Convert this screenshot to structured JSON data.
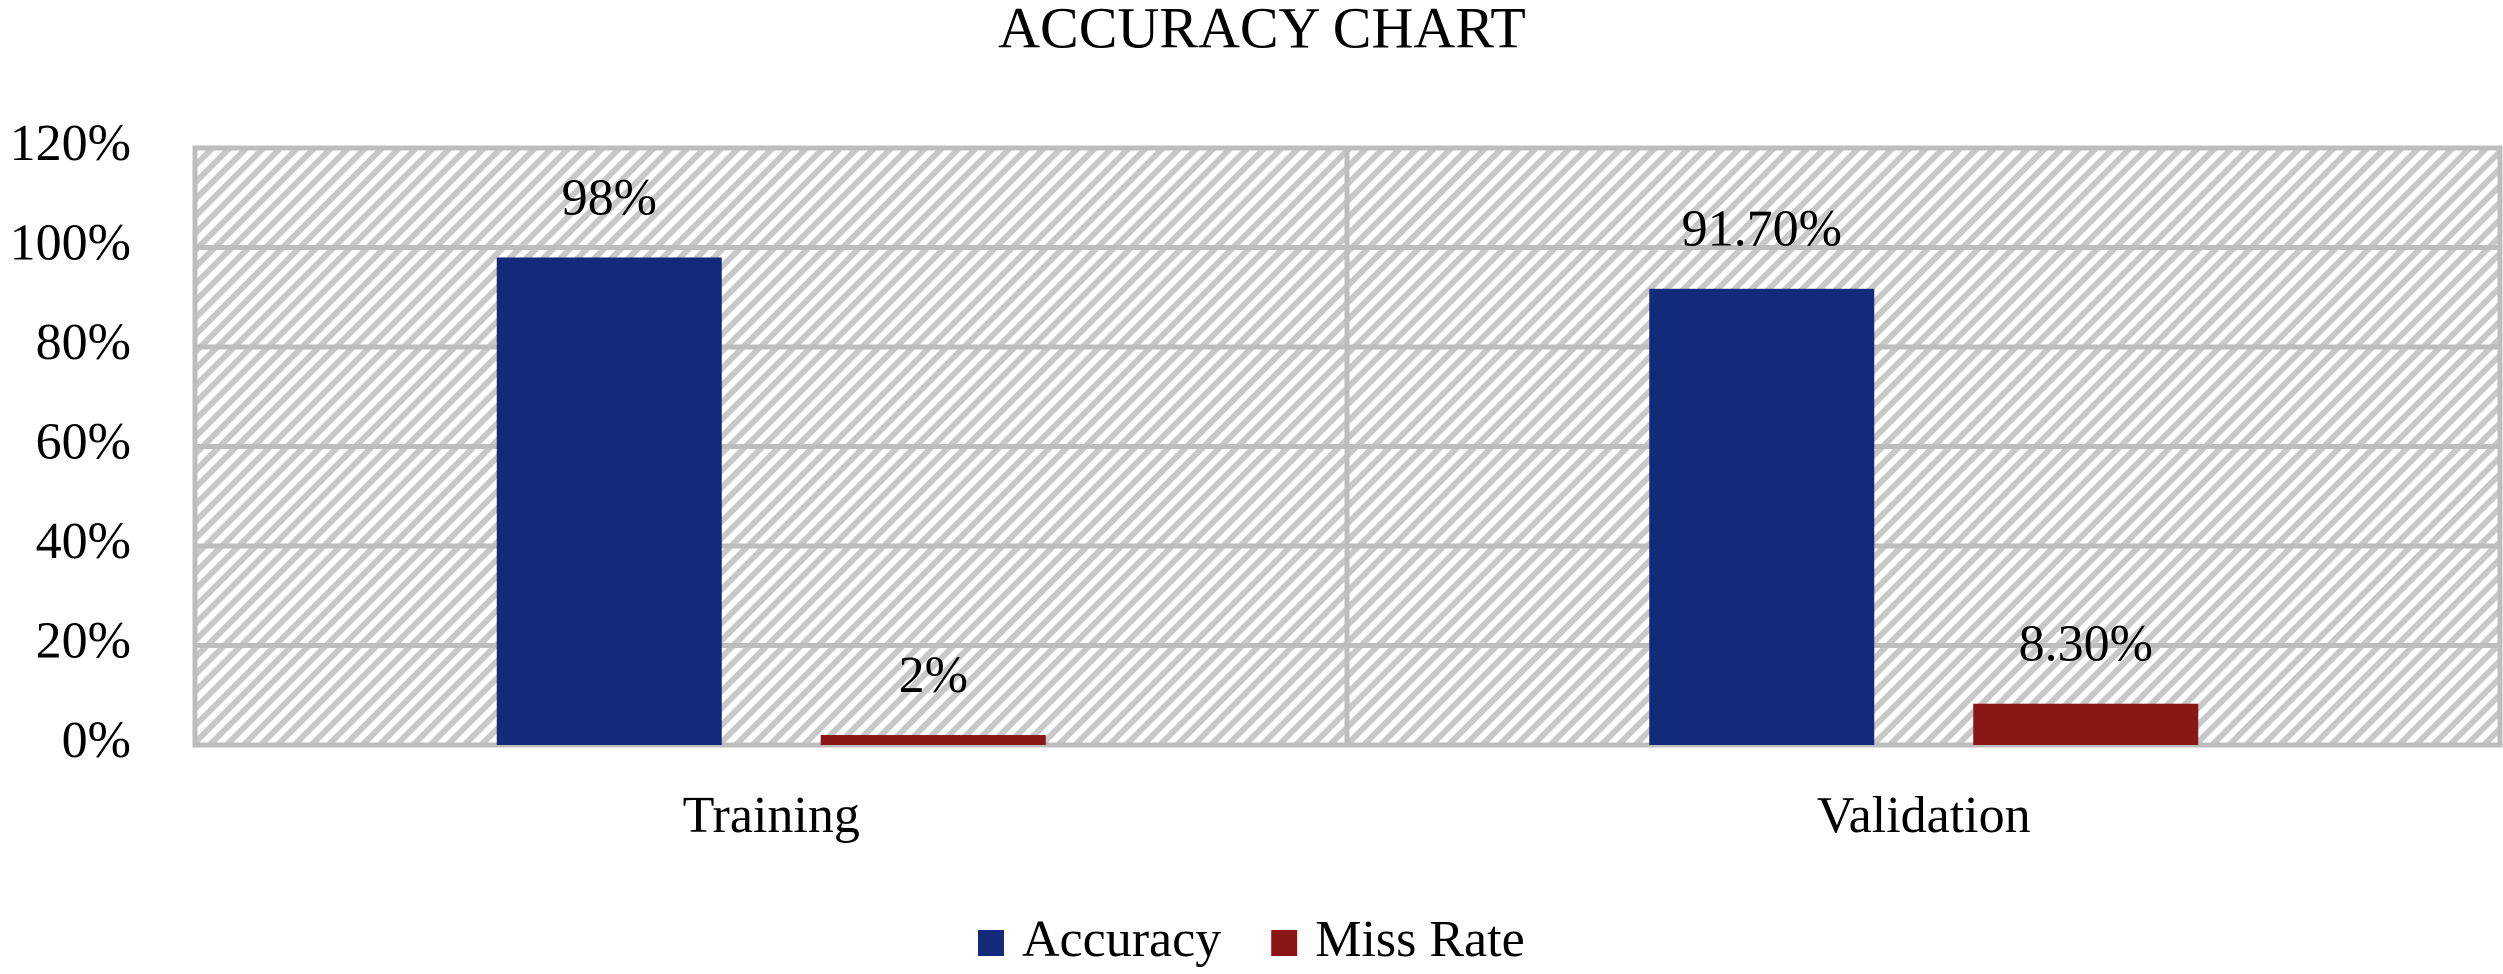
{
  "chart_data": {
    "type": "bar",
    "title": "ACCURACY CHART",
    "categories": [
      "Training",
      "Validation"
    ],
    "series": [
      {
        "name": "Accuracy",
        "color": "#13297a",
        "values": [
          98,
          91.7
        ],
        "value_labels": [
          "98%",
          "91.70%"
        ]
      },
      {
        "name": "Miss Rate",
        "color": "#8b1616",
        "values": [
          2,
          8.3
        ],
        "value_labels": [
          "2%",
          "8.30%"
        ]
      }
    ],
    "ylim": [
      0,
      120
    ],
    "yticks": [
      {
        "value": 0,
        "label": "0%"
      },
      {
        "value": 20,
        "label": "20%"
      },
      {
        "value": 40,
        "label": "40%"
      },
      {
        "value": 60,
        "label": "60%"
      },
      {
        "value": 80,
        "label": "80%"
      },
      {
        "value": 100,
        "label": "100%"
      },
      {
        "value": 120,
        "label": "120%"
      }
    ],
    "grid": true,
    "legend": "bottom"
  }
}
